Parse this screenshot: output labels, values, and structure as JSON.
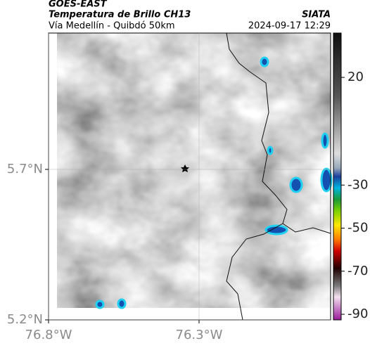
{
  "header": {
    "satellite": "GOES-EAST",
    "product": "Temperatura de Brillo CH13",
    "region": "Vía Medellín - Quibdó 50km",
    "source": "SIATA",
    "datetime": "2024-09-17 12:29"
  },
  "map": {
    "xlim": [
      -76.8,
      -75.863
    ],
    "ylim": [
      5.2,
      6.153
    ],
    "xticks": [
      {
        "value": -76.8,
        "label": "76.8°W"
      },
      {
        "value": -76.3,
        "label": "76.3°W"
      }
    ],
    "yticks": [
      {
        "value": 5.7,
        "label": "5.7°N"
      },
      {
        "value": 5.2,
        "label": "5.2°N"
      }
    ]
  },
  "colorbar": {
    "lim": [
      -92.6,
      40.6
    ],
    "ticks": [
      20,
      -30,
      -50,
      -70,
      -90
    ]
  }
}
